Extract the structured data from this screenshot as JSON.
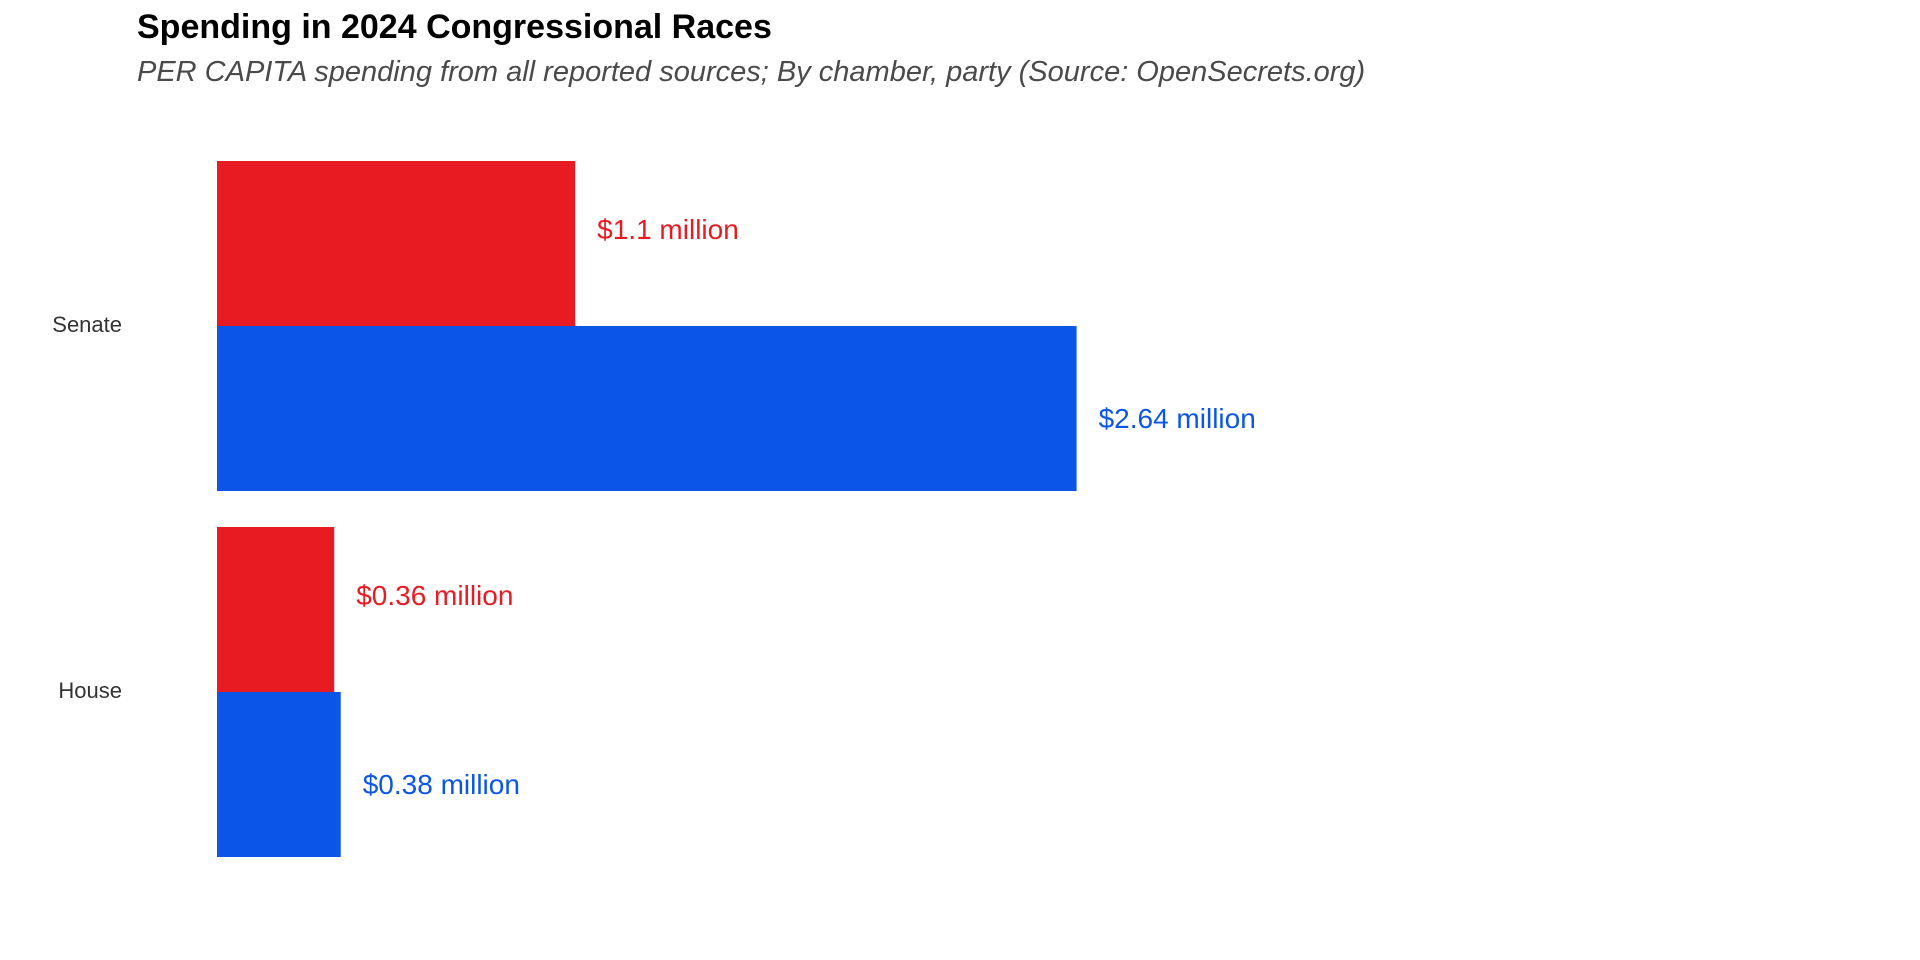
{
  "chart_data": {
    "type": "bar",
    "orientation": "horizontal",
    "title": "Spending in 2024 Congressional Races",
    "subtitle": "PER CAPITA spending from all reported sources; By chamber, party (Source: OpenSecrets.org)",
    "categories": [
      "Senate",
      "House"
    ],
    "series": [
      {
        "color": "#e81b23",
        "values": [
          1.1,
          0.36
        ],
        "labels": [
          "$1.1 million",
          "$0.36 million"
        ]
      },
      {
        "color": "#0b56e6",
        "values": [
          2.64,
          0.38
        ],
        "labels": [
          "$2.64 million",
          "$0.38 million"
        ]
      }
    ],
    "xlim": [
      0,
      5.5
    ],
    "grid": false,
    "legend": "none",
    "x_axis_visible": false
  }
}
